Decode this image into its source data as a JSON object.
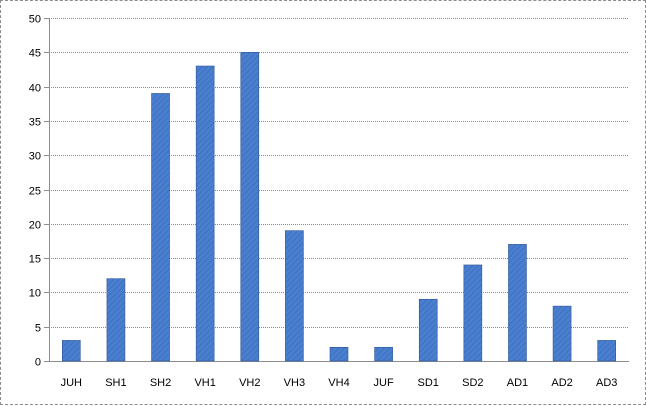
{
  "chart_data": {
    "type": "bar",
    "categories": [
      "JUH",
      "SH1",
      "SH2",
      "VH1",
      "VH2",
      "VH3",
      "VH4",
      "JUF",
      "SD1",
      "SD2",
      "AD1",
      "AD2",
      "AD3"
    ],
    "values": [
      3,
      12,
      39,
      43,
      45,
      19,
      2,
      2,
      9,
      14,
      17,
      8,
      3
    ],
    "ylim": [
      0,
      50
    ],
    "yticks": [
      0,
      5,
      10,
      15,
      20,
      25,
      30,
      35,
      40,
      45,
      50
    ],
    "grid": true,
    "legend": "none",
    "colors": {
      "bar": "#4a7fcf",
      "bar_edge": "#2f5597",
      "grid": "#8c8c8c",
      "axis": "#8c8c8c"
    }
  }
}
